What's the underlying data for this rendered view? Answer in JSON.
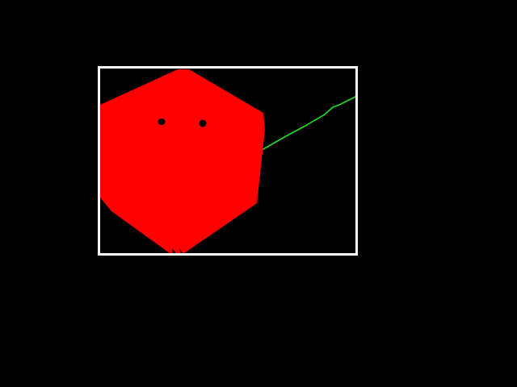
{
  "scene": {
    "background_color": "#000000",
    "frame_color": "#ffffff",
    "blob_color": "#ff0000",
    "eye_color": "#000000",
    "line_color": "#22dd22"
  }
}
